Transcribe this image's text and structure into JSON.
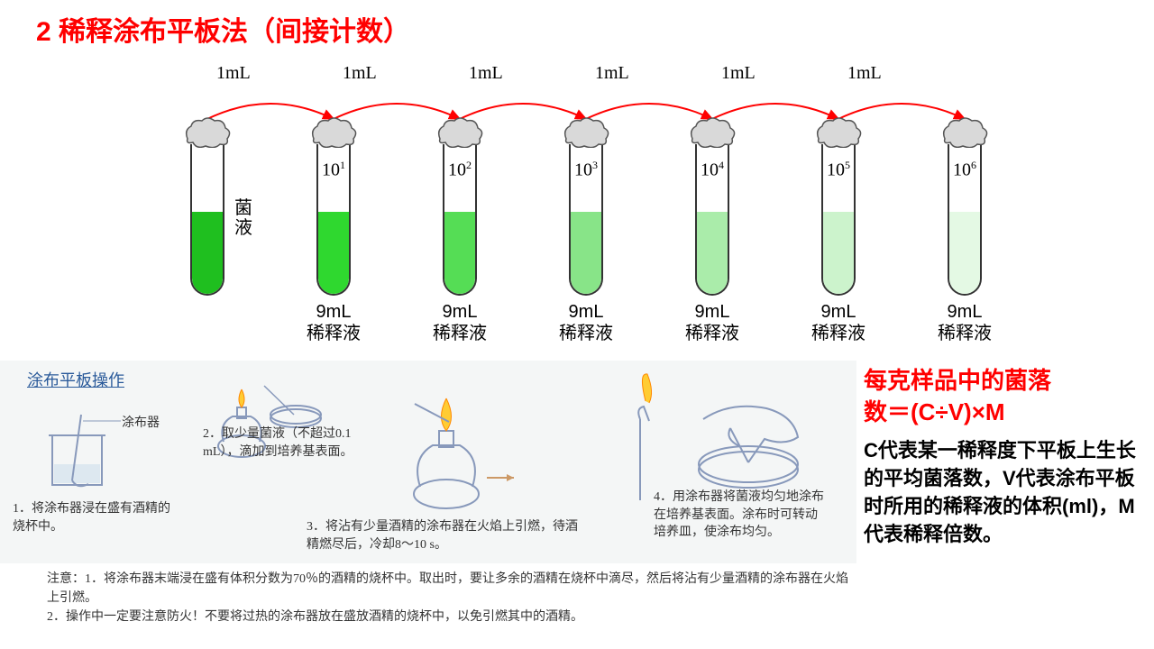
{
  "title": {
    "text": "2 稀释涂布平板法（间接计数）",
    "color": "#ff0000",
    "fontsize": 30
  },
  "diagram": {
    "background": "#ffffff",
    "transfer_volume": "1mL",
    "arrow_color": "#ff0000",
    "tube_positions_x": [
      10,
      150,
      290,
      430,
      570,
      710,
      850
    ],
    "transfer_label_positions_x": [
      70,
      210,
      350,
      490,
      630,
      770
    ],
    "stock_tube": {
      "label": "菌\n液",
      "liquid_color": "#1fbf1f",
      "liquid_height_pct": 55,
      "bottom_label": ""
    },
    "dilution_tubes": [
      {
        "exponent": "1",
        "liquid_color": "#2fd82f",
        "liquid_height_pct": 55,
        "volume": "9mL",
        "label": "稀释液"
      },
      {
        "exponent": "2",
        "liquid_color": "#55dd55",
        "liquid_height_pct": 55,
        "volume": "9mL",
        "label": "稀释液"
      },
      {
        "exponent": "3",
        "liquid_color": "#88e488",
        "liquid_height_pct": 55,
        "volume": "9mL",
        "label": "稀释液"
      },
      {
        "exponent": "4",
        "liquid_color": "#aaecaa",
        "liquid_height_pct": 55,
        "volume": "9mL",
        "label": "稀释液"
      },
      {
        "exponent": "5",
        "liquid_color": "#ccf3cc",
        "liquid_height_pct": 55,
        "volume": "9mL",
        "label": "稀释液"
      },
      {
        "exponent": "6",
        "liquid_color": "#e4f9e4",
        "liquid_height_pct": 55,
        "volume": "9mL",
        "label": "稀释液"
      }
    ],
    "cap_fill": "#d9d9d9",
    "cap_stroke": "#555555"
  },
  "procedure": {
    "title": "涂布平板操作",
    "spreader_label": "涂布器",
    "steps": [
      "1．将涂布器浸在盛有酒精的烧杯中。",
      "2．取少量菌液（不超过0.1 mL），滴加到培养基表面。",
      "3．将沾有少量酒精的涂布器在火焰上引燃，待酒精燃尽后，冷却8～10 s。",
      "4．用涂布器将菌液均匀地涂布在培养基表面。涂布时可转动培养皿，使涂布均匀。"
    ],
    "notes": "注意：1．将涂布器末端浸在盛有体积分数为70％的酒精的烧杯中。取出时，要让多余的酒精在烧杯中滴尽，然后将沾有少量酒精的涂布器在火焰上引燃。\n2．操作中一定要注意防火！不要将过热的涂布器放在盛放酒精的烧杯中，以免引燃其中的酒精。",
    "illustration_stroke": "#8899bb",
    "flame_color_outer": "#ffcc33",
    "flame_color_inner": "#ff8800"
  },
  "formula": {
    "line1": "每克样品中的菌落",
    "line2": "数＝(C÷V)×M",
    "color": "#ff0000",
    "description": "C代表某一稀释度下平板上生长的平均菌落数，V代表涂布平板时所用的稀释液的体积(ml)，M代表稀释倍数。"
  }
}
